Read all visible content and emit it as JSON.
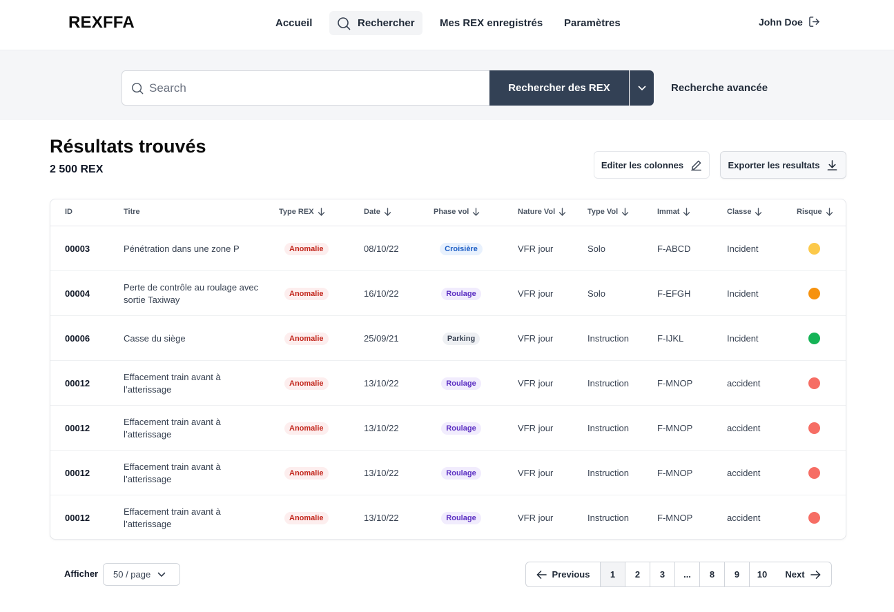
{
  "brand": "REXFFA",
  "nav": {
    "home": "Accueil",
    "search": "Rechercher",
    "mine": "Mes REX enregistrés",
    "settings": "Paramètres"
  },
  "user": {
    "name": "John Doe",
    "icon": "logout-icon"
  },
  "search": {
    "placeholder": "Search",
    "button": "Rechercher des REX",
    "advanced": "Recherche avancée"
  },
  "results": {
    "title": "Résultats trouvés",
    "count": "2 500 REX",
    "edit_columns": "Editer les colonnes",
    "export": "Exporter les resultats"
  },
  "table": {
    "headers": {
      "id": "ID",
      "title": "Titre",
      "type": "Type REX",
      "date": "Date",
      "phase": "Phase vol",
      "nature": "Nature Vol",
      "tvol": "Type Vol",
      "immat": "Immat",
      "classe": "Classe",
      "risk": "Risque"
    },
    "rows": [
      {
        "id": "00003",
        "title": "Pénétration dans une zone P",
        "type": "Anomalie",
        "date": "08/10/22",
        "phase": "Croisière",
        "nature": "VFR jour",
        "tvol": "Solo",
        "immat": "F-ABCD",
        "classe": "Incident",
        "risk_color": "#fcc94a"
      },
      {
        "id": "00004",
        "title": "Perte de contrôle au roulage avec sortie Taxiway",
        "type": "Anomalie",
        "date": "16/10/22",
        "phase": "Roulage",
        "nature": "VFR jour",
        "tvol": "Solo",
        "immat": "F-EFGH",
        "classe": "Incident",
        "risk_color": "#f6920e"
      },
      {
        "id": "00006",
        "title": "Casse du siège",
        "type": "Anomalie",
        "date": "25/09/21",
        "phase": "Parking",
        "nature": "VFR jour",
        "tvol": "Instruction",
        "immat": "F-IJKL",
        "classe": "Incident",
        "risk_color": "#15b356"
      },
      {
        "id": "00012",
        "title": "Effacement train avant à l’atterissage",
        "type": "Anomalie",
        "date": "13/10/22",
        "phase": "Roulage",
        "nature": "VFR jour",
        "tvol": "Instruction",
        "immat": "F-MNOP",
        "classe": "accident",
        "risk_color": "#f66d64"
      },
      {
        "id": "00012",
        "title": "Effacement train avant à l’atterissage",
        "type": "Anomalie",
        "date": "13/10/22",
        "phase": "Roulage",
        "nature": "VFR jour",
        "tvol": "Instruction",
        "immat": "F-MNOP",
        "classe": "accident",
        "risk_color": "#f66d64"
      },
      {
        "id": "00012",
        "title": "Effacement train avant à l’atterissage",
        "type": "Anomalie",
        "date": "13/10/22",
        "phase": "Roulage",
        "nature": "VFR jour",
        "tvol": "Instruction",
        "immat": "F-MNOP",
        "classe": "accident",
        "risk_color": "#f66d64"
      },
      {
        "id": "00012",
        "title": "Effacement train avant à l’atterissage",
        "type": "Anomalie",
        "date": "13/10/22",
        "phase": "Roulage",
        "nature": "VFR jour",
        "tvol": "Instruction",
        "immat": "F-MNOP",
        "classe": "accident",
        "risk_color": "#f66d64"
      }
    ]
  },
  "footer": {
    "show_label": "Afficher",
    "per_page": "50 / page",
    "prev": "Previous",
    "next": "Next",
    "pages": [
      "1",
      "2",
      "3",
      "...",
      "8",
      "9",
      "10"
    ],
    "current_page": "1"
  }
}
